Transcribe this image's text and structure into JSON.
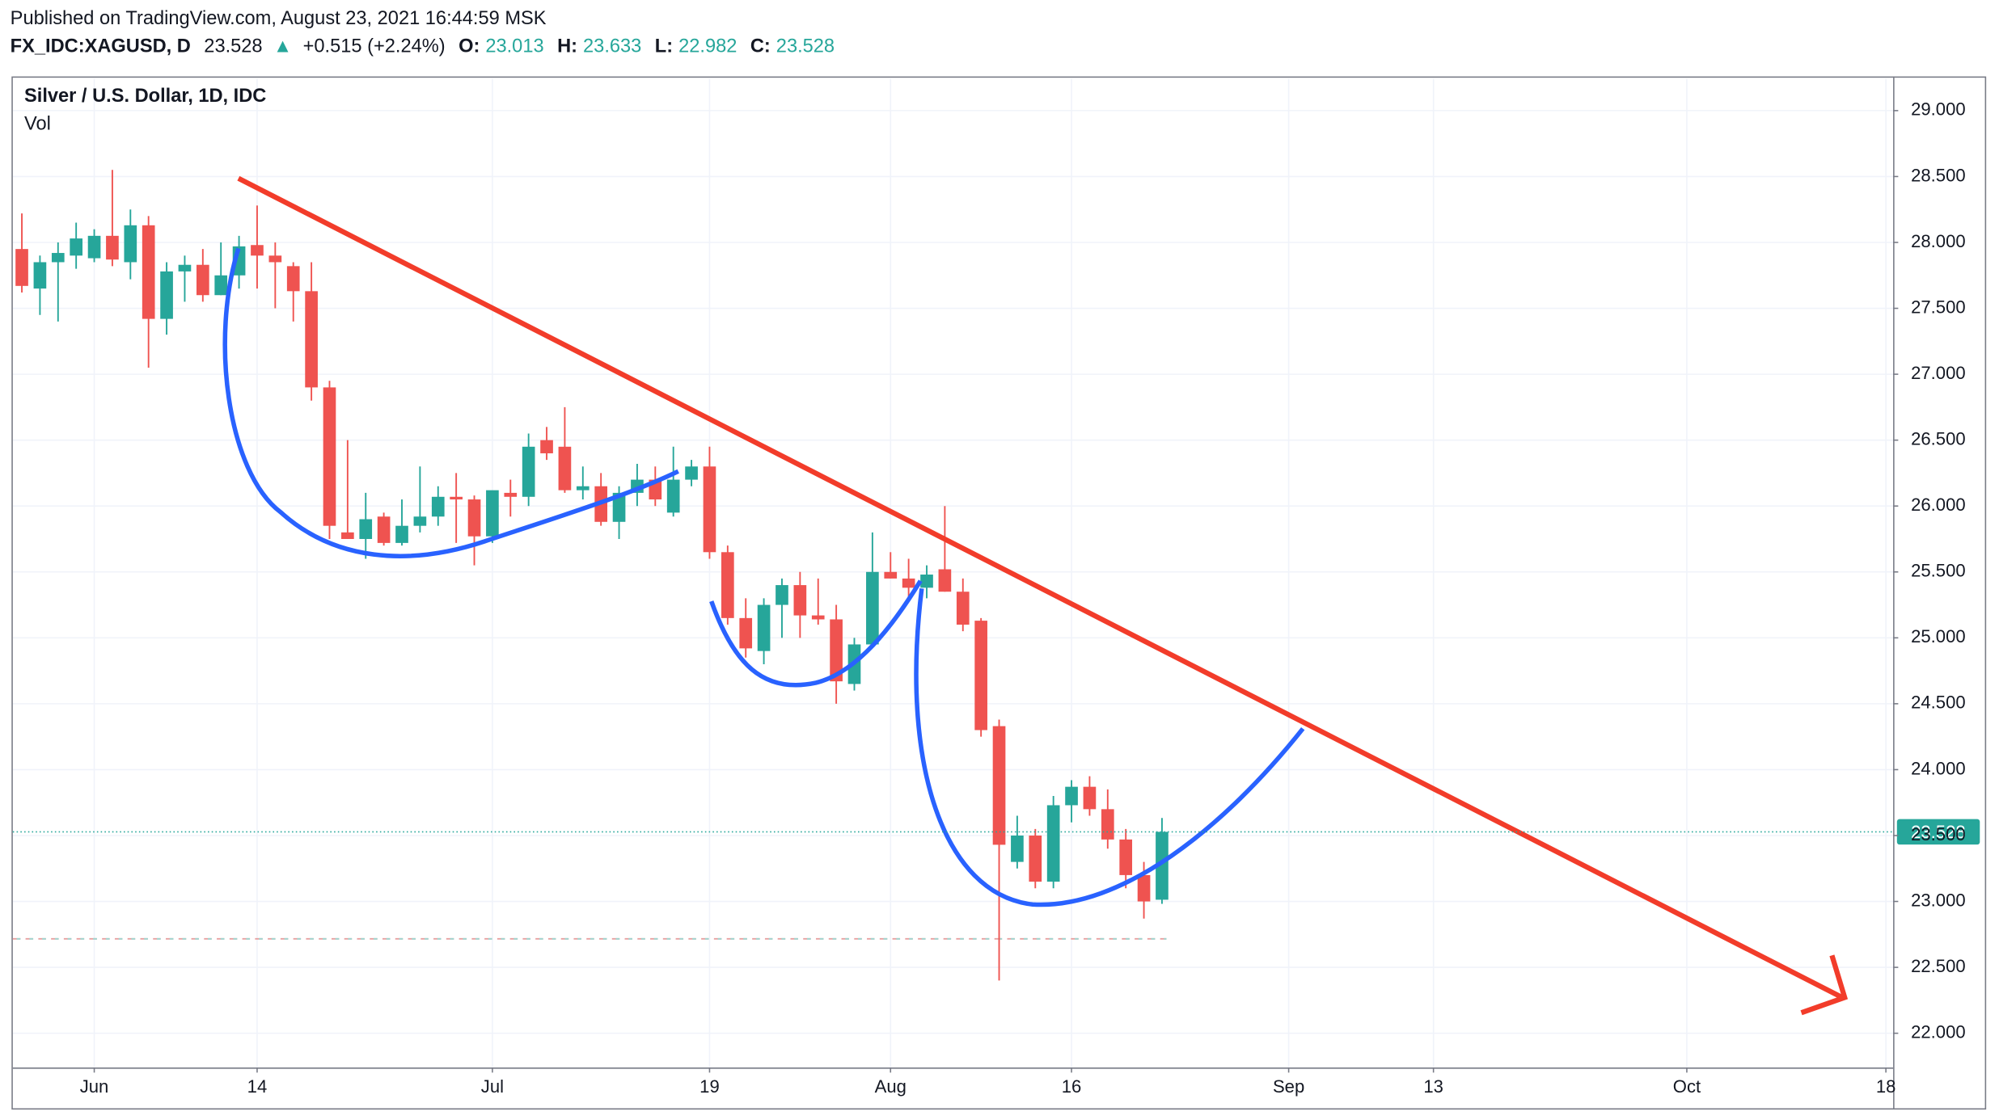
{
  "header": {
    "published": "Published on TradingView.com, August 23, 2021 16:44:59 MSK",
    "symbol": "FX_IDC:XAGUSD, D",
    "arrow": "▲",
    "change": "+0.515 (+2.24%)",
    "o_label": "O:",
    "h_label": "H:",
    "l_label": "L:",
    "c_label": "C:"
  },
  "chart_data": {
    "type": "candlestick",
    "title": "Silver / U.S. Dollar, 1D, IDC",
    "subtitle": "Vol",
    "up_color": "#26a69a",
    "down_color": "#ef5350",
    "open": [
      27.95,
      27.65,
      27.85,
      27.9,
      27.88,
      28.05,
      27.85,
      28.13,
      27.42,
      27.78,
      27.83,
      27.6,
      27.75,
      27.98,
      27.9,
      27.82,
      27.63,
      26.9,
      25.8,
      25.75,
      25.92,
      25.72,
      25.85,
      25.92,
      26.07,
      26.05,
      25.77,
      26.1,
      26.07,
      26.5,
      26.45,
      26.12,
      26.15,
      25.88,
      26.1,
      26.2,
      25.95,
      26.2,
      26.3,
      25.65,
      25.15,
      24.9,
      25.25,
      25.4,
      25.17,
      25.14,
      24.65,
      24.95,
      25.5,
      25.45,
      25.38,
      25.52,
      25.35,
      25.13,
      24.33,
      23.3,
      23.5,
      23.15,
      23.73,
      23.87,
      23.7,
      23.47,
      23.2,
      23.013
    ],
    "high": [
      28.22,
      27.9,
      28.0,
      28.15,
      28.1,
      28.55,
      28.25,
      28.2,
      27.85,
      27.9,
      27.95,
      28.0,
      28.05,
      28.28,
      28.0,
      27.85,
      27.85,
      26.95,
      26.5,
      26.1,
      25.95,
      26.05,
      26.3,
      26.15,
      26.25,
      26.08,
      26.1,
      26.2,
      26.55,
      26.6,
      26.75,
      26.3,
      26.25,
      26.15,
      26.32,
      26.3,
      26.45,
      26.35,
      26.45,
      25.7,
      25.3,
      25.3,
      25.45,
      25.5,
      25.45,
      25.25,
      25.0,
      25.8,
      25.65,
      25.6,
      25.55,
      26.0,
      25.45,
      25.15,
      24.38,
      23.65,
      23.55,
      23.8,
      23.92,
      23.95,
      23.85,
      23.55,
      23.3,
      23.633
    ],
    "low": [
      27.62,
      27.45,
      27.4,
      27.8,
      27.85,
      27.82,
      27.72,
      27.05,
      27.3,
      27.55,
      27.55,
      27.6,
      27.65,
      27.65,
      27.5,
      27.4,
      26.8,
      25.75,
      25.75,
      25.6,
      25.7,
      25.7,
      25.8,
      25.85,
      25.72,
      25.55,
      25.72,
      25.92,
      26.0,
      26.35,
      26.1,
      26.05,
      25.85,
      25.75,
      26.0,
      26.0,
      25.92,
      26.15,
      25.6,
      25.1,
      24.85,
      24.8,
      25.0,
      25.0,
      25.1,
      24.5,
      24.6,
      24.95,
      25.45,
      25.3,
      25.3,
      25.35,
      25.05,
      24.25,
      22.4,
      23.25,
      23.1,
      23.1,
      23.6,
      23.65,
      23.4,
      23.1,
      22.87,
      22.982
    ],
    "close": [
      27.67,
      27.85,
      27.92,
      28.03,
      28.05,
      27.87,
      28.13,
      27.42,
      27.78,
      27.83,
      27.6,
      27.75,
      27.97,
      27.9,
      27.85,
      27.63,
      26.9,
      25.85,
      25.75,
      25.9,
      25.72,
      25.85,
      25.92,
      26.07,
      26.05,
      25.77,
      26.12,
      26.07,
      26.45,
      26.4,
      26.12,
      26.15,
      25.88,
      26.1,
      26.2,
      26.05,
      26.2,
      26.3,
      25.65,
      25.15,
      24.92,
      25.25,
      25.4,
      25.17,
      25.14,
      24.67,
      24.95,
      25.5,
      25.45,
      25.38,
      25.48,
      25.35,
      25.1,
      24.3,
      23.43,
      23.5,
      23.15,
      23.73,
      23.87,
      23.7,
      23.47,
      23.2,
      23.0,
      23.528
    ],
    "xlim": [
      -0.5,
      103.4
    ],
    "xticks": [
      {
        "value": 4,
        "label": "Jun"
      },
      {
        "value": 13,
        "label": "14"
      },
      {
        "value": 26,
        "label": "Jul"
      },
      {
        "value": 38,
        "label": "19"
      },
      {
        "value": 48,
        "label": "Aug"
      },
      {
        "value": 58,
        "label": "16"
      },
      {
        "value": 70,
        "label": "Sep"
      },
      {
        "value": 78,
        "label": "13"
      },
      {
        "value": 92,
        "label": "Oct"
      },
      {
        "value": 103,
        "label": "18"
      }
    ],
    "ylim": [
      21.74,
      29.24
    ],
    "yticks": [
      {
        "value": 22,
        "label": "22.000"
      },
      {
        "value": 22.5,
        "label": "22.500"
      },
      {
        "value": 23,
        "label": "23.000"
      },
      {
        "value": 23.5,
        "label": "23.500"
      },
      {
        "value": 24,
        "label": "24.000"
      },
      {
        "value": 24.5,
        "label": "24.500"
      },
      {
        "value": 25,
        "label": "25.000"
      },
      {
        "value": 25.5,
        "label": "25.500"
      },
      {
        "value": 26,
        "label": "26.000"
      },
      {
        "value": 26.5,
        "label": "26.500"
      },
      {
        "value": 27,
        "label": "27.000"
      },
      {
        "value": 27.5,
        "label": "27.500"
      },
      {
        "value": 28,
        "label": "28.000"
      },
      {
        "value": 28.5,
        "label": "28.500"
      },
      {
        "value": 29,
        "label": "29.000"
      }
    ],
    "grid": true
  }
}
